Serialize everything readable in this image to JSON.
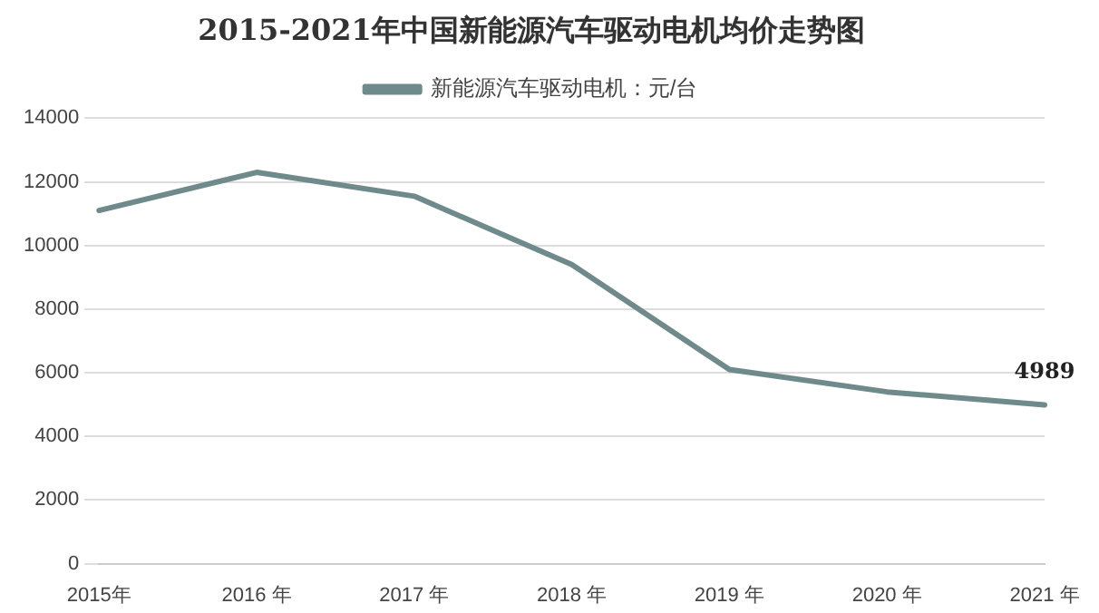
{
  "chart_data": {
    "type": "line",
    "title": "2015-2021年中国新能源汽车驱动电机均价走势图",
    "categories": [
      "2015年",
      "2016 年",
      "2017 年",
      "2018 年",
      "2019 年",
      "2020 年",
      "2021 年"
    ],
    "series": [
      {
        "name": "新能源汽车驱动电机：元/台",
        "color": "#6f8a8b",
        "values": [
          11100,
          12300,
          11550,
          9400,
          6100,
          5400,
          4989
        ],
        "value_labels": [
          null,
          null,
          null,
          null,
          null,
          null,
          "4989"
        ]
      }
    ],
    "ylim": [
      0,
      14000
    ],
    "yticks": [
      0,
      2000,
      4000,
      6000,
      8000,
      10000,
      12000,
      14000
    ],
    "grid": "y",
    "legend": "top",
    "marker": "none",
    "line_style": "solid"
  }
}
